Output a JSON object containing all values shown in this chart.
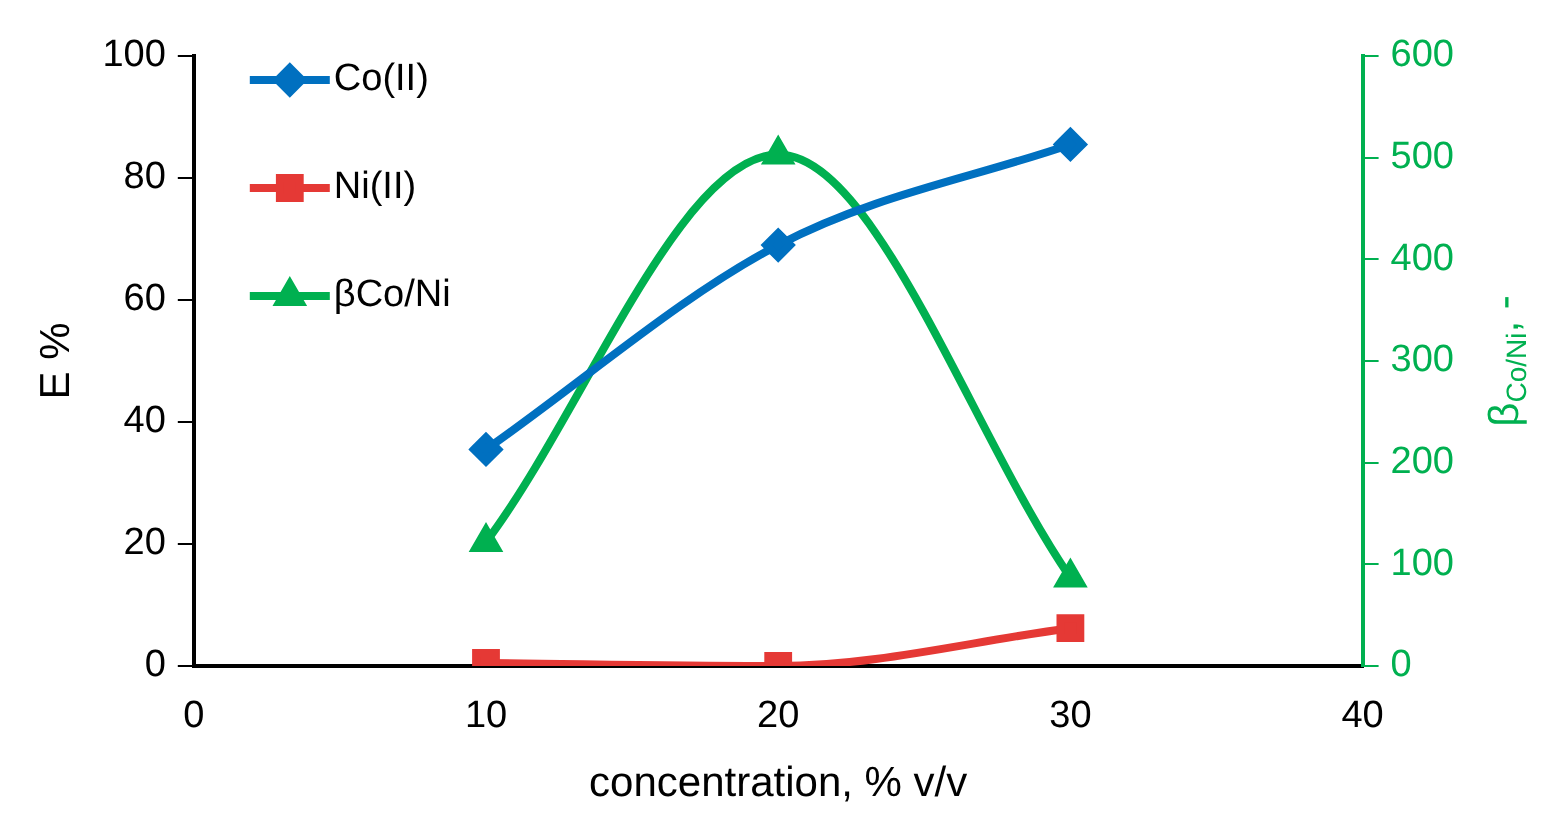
{
  "chart_data": {
    "type": "line",
    "xlabel": "concentration, % v/v",
    "ylabel": "E %",
    "y2label": "β$_{Co/Ni}$, -",
    "x": [
      10,
      20,
      30
    ],
    "xlim": [
      0,
      40
    ],
    "xticks": [
      0,
      10,
      20,
      30,
      40
    ],
    "ylim": [
      0,
      100
    ],
    "yticks": [
      0,
      20,
      40,
      60,
      80,
      100
    ],
    "y2lim": [
      0,
      600
    ],
    "y2ticks": [
      0,
      100,
      200,
      300,
      400,
      500,
      600
    ],
    "grid": false,
    "legend": "top left",
    "series": [
      {
        "name": "Co(II)",
        "color": "#0070c0",
        "values": [
          35.5,
          69,
          85.5
        ],
        "marker": "diamond"
      },
      {
        "name": "Ni(II)",
        "color": "#e53935",
        "values": [
          0.5,
          0,
          6.2
        ],
        "marker": "square"
      },
      {
        "name": "βCo/Ni",
        "color": "#00b050",
        "values": [
          122,
          503,
          87
        ],
        "marker": "triangle",
        "axis": "y2"
      }
    ]
  }
}
